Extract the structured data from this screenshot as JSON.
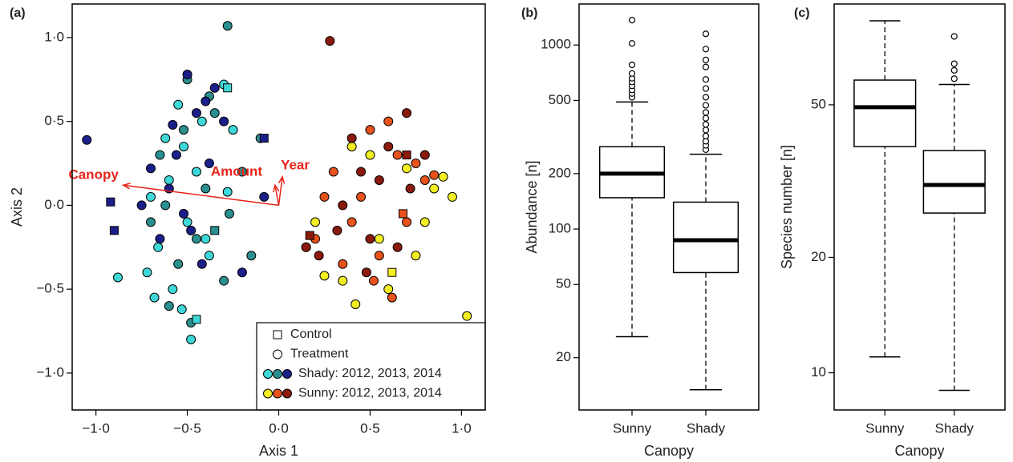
{
  "chart_data": [
    {
      "type": "scatter",
      "panel_label": "(a)",
      "xlabel": "Axis 1",
      "ylabel": "Axis 2",
      "xlim": [
        -1.13,
        1.13
      ],
      "ylim": [
        -1.22,
        1.2
      ],
      "xticks": [
        {
          "value": -1,
          "label": "−1·0"
        },
        {
          "value": -0.5,
          "label": "−0·5"
        },
        {
          "value": 0,
          "label": "0·0"
        },
        {
          "value": 0.5,
          "label": "0·5"
        },
        {
          "value": 1,
          "label": "1·0"
        }
      ],
      "yticks": [
        {
          "value": -1,
          "label": "−1·0"
        },
        {
          "value": -0.5,
          "label": "−0·5"
        },
        {
          "value": 0,
          "label": "0·0"
        },
        {
          "value": 0.5,
          "label": "0·5"
        },
        {
          "value": 1,
          "label": "1·0"
        }
      ],
      "series": [
        {
          "color": "#3fd8d8",
          "marker": "circle",
          "x": [
            -0.55,
            -0.62,
            -0.45,
            -0.7,
            -0.5,
            -0.38,
            -0.58,
            -0.66,
            -0.42,
            -0.52,
            -0.72,
            -0.3,
            -0.48,
            -0.6,
            -0.88,
            -0.25,
            -0.53,
            -0.4,
            -0.28,
            -0.68
          ],
          "y": [
            0.6,
            0.4,
            0.2,
            0.05,
            -0.1,
            -0.3,
            -0.5,
            -0.25,
            0.5,
            0.35,
            -0.4,
            0.72,
            -0.8,
            0.15,
            -0.43,
            0.45,
            -0.62,
            -0.2,
            0.08,
            -0.55
          ]
        },
        {
          "color": "#2a8f8f",
          "marker": "circle",
          "x": [
            -0.5,
            -0.65,
            -0.35,
            -0.28,
            -0.45,
            -0.55,
            -0.2,
            -0.6,
            -0.4,
            -0.3,
            -0.52,
            -0.7,
            -0.15,
            -0.48,
            -0.38,
            -0.62,
            -0.27,
            -0.1
          ],
          "y": [
            0.75,
            0.3,
            0.55,
            1.07,
            -0.2,
            -0.35,
            0.2,
            -0.6,
            0.1,
            -0.45,
            0.45,
            -0.1,
            -0.3,
            -0.7,
            0.65,
            0.0,
            -0.05,
            0.4
          ]
        },
        {
          "color": "#1b1f8a",
          "marker": "circle",
          "x": [
            -1.05,
            -0.5,
            -0.45,
            -0.38,
            -0.6,
            -0.52,
            -0.3,
            -0.65,
            -0.42,
            -0.56,
            -0.35,
            -0.2,
            -0.75,
            -0.48,
            -0.08,
            -0.58,
            -0.4,
            -0.7
          ],
          "y": [
            0.39,
            0.78,
            0.55,
            0.25,
            0.1,
            -0.05,
            0.5,
            -0.2,
            -0.35,
            0.3,
            0.7,
            -0.4,
            0.0,
            -0.15,
            0.05,
            0.48,
            0.62,
            0.22
          ]
        },
        {
          "color": "#f3ef22",
          "marker": "circle",
          "x": [
            0.4,
            0.9,
            0.75,
            0.2,
            0.35,
            0.6,
            0.85,
            0.5,
            0.15,
            0.95,
            0.42,
            0.7,
            1.03,
            0.25,
            0.55,
            0.8
          ],
          "y": [
            0.35,
            0.17,
            -0.3,
            -0.1,
            -0.45,
            -0.5,
            0.1,
            0.3,
            -0.25,
            0.05,
            -0.59,
            0.22,
            -0.66,
            -0.42,
            -0.2,
            -0.1
          ]
        },
        {
          "color": "#e8521b",
          "marker": "circle",
          "x": [
            0.3,
            0.5,
            0.65,
            0.4,
            0.8,
            0.55,
            0.2,
            0.7,
            0.45,
            0.6,
            0.35,
            0.75,
            0.52,
            0.25,
            0.62,
            0.85
          ],
          "y": [
            0.2,
            0.45,
            0.3,
            -0.1,
            0.15,
            -0.3,
            -0.2,
            -0.1,
            0.05,
            0.5,
            -0.35,
            0.25,
            -0.45,
            0.05,
            -0.55,
            0.18
          ]
        },
        {
          "color": "#8b1a0c",
          "marker": "circle",
          "x": [
            0.28,
            0.45,
            0.6,
            0.35,
            0.72,
            0.5,
            0.22,
            0.65,
            0.4,
            0.55,
            0.32,
            0.8,
            0.48,
            0.15,
            0.7
          ],
          "y": [
            0.98,
            0.2,
            0.35,
            0.0,
            0.1,
            -0.2,
            -0.3,
            -0.25,
            0.4,
            0.15,
            -0.15,
            0.3,
            -0.4,
            -0.25,
            0.55
          ]
        },
        {
          "color": "#3fd8d8",
          "marker": "square",
          "x": [
            -0.45,
            -0.28
          ],
          "y": [
            -0.68,
            0.7
          ]
        },
        {
          "color": "#2a8f8f",
          "marker": "square",
          "x": [
            -0.35
          ],
          "y": [
            -0.15
          ]
        },
        {
          "color": "#1b1f8a",
          "marker": "square",
          "x": [
            -0.92,
            -0.9,
            -0.08
          ],
          "y": [
            0.02,
            -0.15,
            0.4
          ]
        },
        {
          "color": "#f3ef22",
          "marker": "square",
          "x": [
            0.62
          ],
          "y": [
            -0.4
          ]
        },
        {
          "color": "#e8521b",
          "marker": "square",
          "x": [
            0.68
          ],
          "y": [
            -0.05
          ]
        },
        {
          "color": "#8b1a0c",
          "marker": "square",
          "x": [
            0.17,
            0.7
          ],
          "y": [
            -0.18,
            0.3
          ]
        }
      ],
      "arrows": [
        {
          "label": "Canopy",
          "x": -0.85,
          "y": 0.12
        },
        {
          "label": "Amount",
          "x": -0.02,
          "y": 0.12
        },
        {
          "label": "Year",
          "x": 0.02,
          "y": 0.17
        }
      ],
      "arrow_color": "#e8231a",
      "legend": [
        {
          "label": "Control",
          "marker": "square"
        },
        {
          "label": "Treatment",
          "marker": "circle"
        },
        {
          "label": "Shady: 2012, 2013, 2014",
          "colors": [
            "#3fd8d8",
            "#2a8f8f",
            "#1b1f8a"
          ]
        },
        {
          "label": "Sunny: 2012, 2013, 2014",
          "colors": [
            "#f3ef22",
            "#e8521b",
            "#8b1a0c"
          ]
        }
      ]
    },
    {
      "type": "box",
      "panel_label": "(b)",
      "xlabel": "Canopy",
      "ylabel": "Abundance [n]",
      "log": true,
      "ylim": [
        10.4,
        1670
      ],
      "yticks": [
        20,
        50,
        100,
        200,
        500,
        1000
      ],
      "categories": [
        "Sunny",
        "Shady"
      ],
      "boxes": [
        {
          "whislo": 26,
          "q1": 148,
          "med": 200,
          "q3": 280,
          "whishi": 490,
          "fliers": [
            520,
            545,
            570,
            600,
            630,
            660,
            700,
            780,
            1020,
            1365
          ]
        },
        {
          "whislo": 13.4,
          "q1": 58,
          "med": 87,
          "q3": 140,
          "whishi": 255,
          "fliers": [
            270,
            285,
            300,
            320,
            345,
            370,
            400,
            430,
            470,
            520,
            580,
            650,
            760,
            830,
            950,
            1150
          ]
        }
      ]
    },
    {
      "type": "box",
      "panel_label": "(c)",
      "xlabel": "Canopy",
      "ylabel": "Species number [n]",
      "log": true,
      "ylim": [
        8.0,
        91.6
      ],
      "yticks": [
        10,
        20,
        50
      ],
      "categories": [
        "Sunny",
        "Shady"
      ],
      "boxes": [
        {
          "whislo": 11,
          "q1": 38.9,
          "med": 49.3,
          "q3": 58,
          "whishi": 82.8,
          "fliers": []
        },
        {
          "whislo": 9.0,
          "q1": 26.1,
          "med": 30.9,
          "q3": 38,
          "whishi": 56.5,
          "fliers": [
            58.5,
            61.5,
            64,
            75.4
          ]
        }
      ]
    }
  ]
}
